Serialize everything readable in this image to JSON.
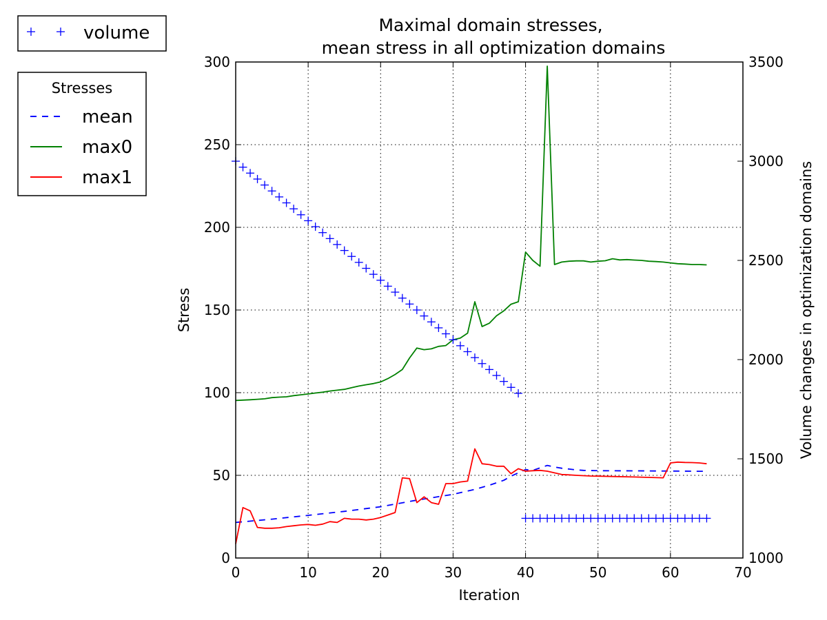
{
  "chart_data": {
    "type": "line",
    "title_line1": "Maximal domain stresses,",
    "title_line2": "mean stress in all optimization domains",
    "xlabel": "Iteration",
    "ylabel": "Stress",
    "y2label": "Volume changes in optimization domains",
    "xlim": [
      0,
      70
    ],
    "ylim": [
      0,
      300
    ],
    "y2lim": [
      1000,
      3500
    ],
    "xticks": [
      "0",
      "10",
      "20",
      "30",
      "40",
      "50",
      "60",
      "70"
    ],
    "yticks": [
      "0",
      "50",
      "100",
      "150",
      "200",
      "250",
      "300"
    ],
    "y2ticks": [
      "1000",
      "1500",
      "2000",
      "2500",
      "3000",
      "3500"
    ],
    "grid": true,
    "legend_volume": {
      "placement": "top-left outside",
      "label": "volume"
    },
    "legend_stresses": {
      "placement": "left outside",
      "title": "Stresses",
      "labels": [
        "mean",
        "max0",
        "max1"
      ]
    },
    "series": [
      {
        "name": "mean",
        "axis": "left",
        "style": "dashed",
        "color": "#0000ff",
        "x": [
          0,
          5,
          10,
          15,
          20,
          25,
          30,
          33,
          35,
          37,
          38,
          39,
          40,
          41,
          42,
          43,
          44,
          45,
          46,
          47,
          48,
          50,
          55,
          60,
          65
        ],
        "y": [
          21.5,
          23.5,
          25.8,
          28.2,
          31.0,
          35.0,
          38.5,
          41.5,
          44.0,
          47.0,
          49.5,
          51.5,
          53.5,
          53.0,
          54.5,
          56.0,
          55.0,
          54.3,
          53.8,
          53.3,
          53.0,
          52.8,
          52.7,
          52.6,
          52.4
        ]
      },
      {
        "name": "max0",
        "axis": "left",
        "style": "solid",
        "color": "#008000",
        "x": [
          0,
          1,
          2,
          3,
          4,
          5,
          6,
          7,
          8,
          9,
          10,
          11,
          12,
          13,
          14,
          15,
          16,
          17,
          18,
          19,
          20,
          21,
          22,
          23,
          24,
          25,
          26,
          27,
          28,
          29,
          30,
          31,
          32,
          33,
          34,
          35,
          36,
          37,
          38,
          39,
          40,
          41,
          42,
          43,
          44,
          45,
          46,
          47,
          48,
          49,
          50,
          51,
          52,
          53,
          54,
          55,
          56,
          57,
          58,
          59,
          60,
          61,
          62,
          63,
          64,
          65
        ],
        "y": [
          95.3,
          95.5,
          95.7,
          96.0,
          96.3,
          97.0,
          97.3,
          97.5,
          98.2,
          98.7,
          99.2,
          99.8,
          100.3,
          101.0,
          101.5,
          102.0,
          103.0,
          104.0,
          104.8,
          105.5,
          106.5,
          108.5,
          111.0,
          114.0,
          121.0,
          127.0,
          126.0,
          126.5,
          128.0,
          128.5,
          132.0,
          133.0,
          136.0,
          155.0,
          140.0,
          142.0,
          146.5,
          149.5,
          153.5,
          155.0,
          185.0,
          180.0,
          176.5,
          297.5,
          177.5,
          179.0,
          179.5,
          179.7,
          179.7,
          179.0,
          179.5,
          179.8,
          181.0,
          180.3,
          180.5,
          180.2,
          180.0,
          179.5,
          179.3,
          179.0,
          178.5,
          178.0,
          177.8,
          177.5,
          177.5,
          177.3
        ]
      },
      {
        "name": "max1",
        "axis": "left",
        "style": "solid",
        "color": "#ff0000",
        "x": [
          0,
          1,
          2,
          3,
          4,
          5,
          6,
          7,
          8,
          9,
          10,
          11,
          12,
          13,
          14,
          15,
          16,
          17,
          18,
          19,
          20,
          21,
          22,
          23,
          24,
          25,
          26,
          27,
          28,
          29,
          30,
          31,
          32,
          33,
          34,
          35,
          36,
          37,
          38,
          39,
          40,
          41,
          42,
          43,
          44,
          45,
          46,
          47,
          48,
          49,
          50,
          55,
          59,
          60,
          61,
          62,
          63,
          64,
          65
        ],
        "y": [
          8.5,
          30.5,
          28.5,
          18.5,
          18.0,
          18.0,
          18.3,
          19.0,
          19.5,
          20.0,
          20.3,
          19.8,
          20.5,
          22.0,
          21.5,
          24.0,
          23.5,
          23.5,
          23.0,
          23.5,
          24.5,
          26.0,
          27.5,
          48.5,
          48.0,
          33.5,
          37.0,
          33.5,
          32.5,
          45.0,
          45.0,
          46.0,
          46.5,
          66.0,
          57.0,
          56.5,
          55.5,
          55.5,
          51.0,
          54.0,
          52.5,
          52.8,
          53.0,
          52.5,
          51.5,
          50.5,
          50.3,
          50.0,
          49.8,
          49.6,
          49.5,
          49.0,
          48.5,
          57.5,
          58.0,
          57.8,
          57.7,
          57.5,
          57.0
        ]
      },
      {
        "name": "volume",
        "axis": "right",
        "style": "markers",
        "marker": "+",
        "color": "#0000ff",
        "x": [
          0,
          1,
          2,
          3,
          4,
          5,
          6,
          7,
          8,
          9,
          10,
          11,
          12,
          13,
          14,
          15,
          16,
          17,
          18,
          19,
          20,
          21,
          22,
          23,
          24,
          25,
          26,
          27,
          28,
          29,
          30,
          31,
          32,
          33,
          34,
          35,
          36,
          37,
          38,
          39,
          40,
          41,
          42,
          43,
          44,
          45,
          46,
          47,
          48,
          49,
          50,
          51,
          52,
          53,
          54,
          55,
          56,
          57,
          58,
          59,
          60,
          61,
          62,
          63,
          64,
          65
        ],
        "y": [
          3000,
          2970,
          2940,
          2910,
          2880,
          2850,
          2820,
          2790,
          2760,
          2730,
          2700,
          2670,
          2640,
          2610,
          2580,
          2550,
          2520,
          2490,
          2460,
          2430,
          2400,
          2370,
          2340,
          2310,
          2280,
          2250,
          2220,
          2190,
          2160,
          2130,
          2100,
          2070,
          2040,
          2010,
          1980,
          1950,
          1920,
          1890,
          1860,
          1830,
          1200,
          1200,
          1200,
          1200,
          1200,
          1200,
          1200,
          1200,
          1200,
          1200,
          1200,
          1200,
          1200,
          1200,
          1200,
          1200,
          1200,
          1200,
          1200,
          1200,
          1200,
          1200,
          1200,
          1200,
          1200,
          1200
        ]
      }
    ]
  }
}
